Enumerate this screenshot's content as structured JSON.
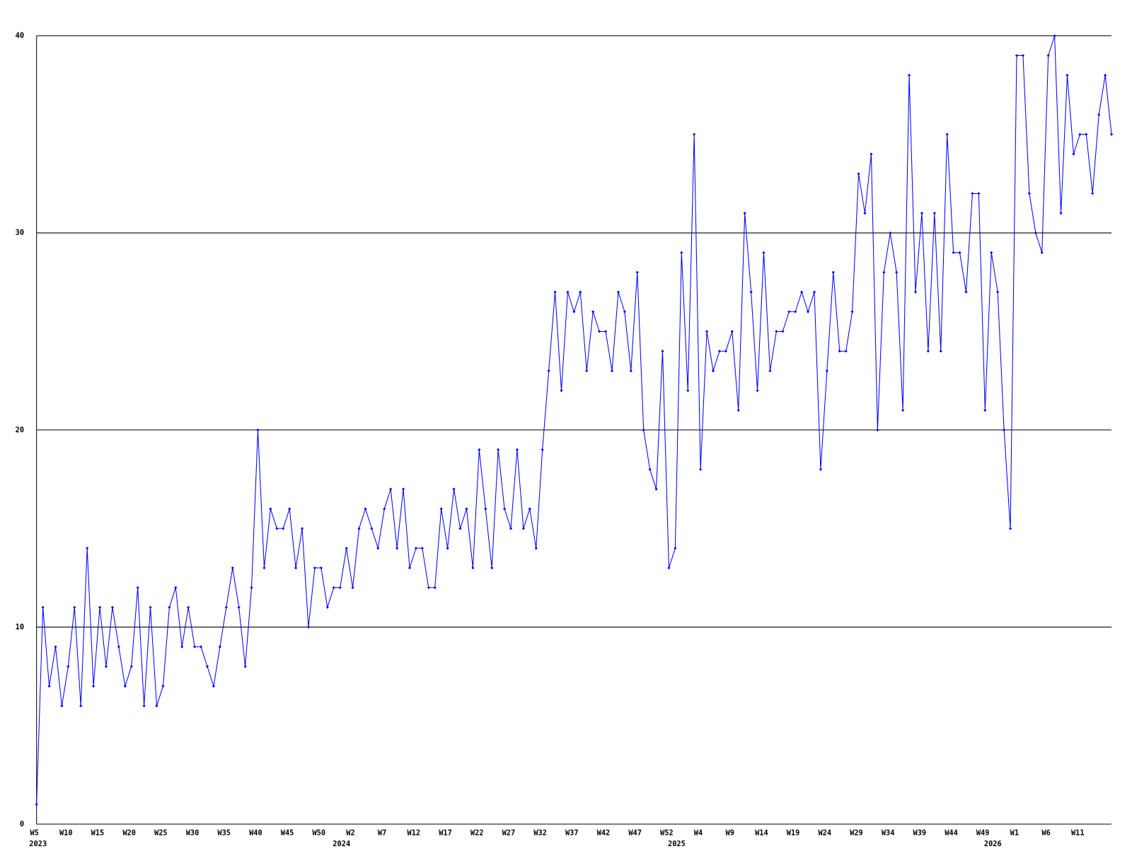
{
  "chart_data": {
    "type": "line",
    "color": "#0000ff",
    "grid": true,
    "ylim": [
      0,
      40
    ],
    "yticks": [
      0,
      10,
      20,
      30,
      40
    ],
    "categories": [
      "W5",
      null,
      null,
      null,
      null,
      "W10",
      null,
      null,
      null,
      null,
      "W15",
      null,
      null,
      null,
      null,
      "W20",
      null,
      null,
      null,
      null,
      "W25",
      null,
      null,
      null,
      null,
      "W30",
      null,
      null,
      null,
      null,
      "W35",
      null,
      null,
      null,
      null,
      "W40",
      null,
      null,
      null,
      null,
      "W45",
      null,
      null,
      null,
      null,
      "W50",
      null,
      null,
      null,
      null,
      "W2",
      null,
      null,
      null,
      null,
      "W7",
      null,
      null,
      null,
      null,
      "W12",
      null,
      null,
      null,
      null,
      "W17",
      null,
      null,
      null,
      null,
      "W22",
      null,
      null,
      null,
      null,
      "W27",
      null,
      null,
      null,
      null,
      "W32",
      null,
      null,
      null,
      null,
      "W37",
      null,
      null,
      null,
      null,
      "W42",
      null,
      null,
      null,
      null,
      "W47",
      null,
      null,
      null,
      null,
      "W52",
      null,
      null,
      null,
      null,
      "W4",
      null,
      null,
      null,
      null,
      "W9",
      null,
      null,
      null,
      null,
      "W14",
      null,
      null,
      null,
      null,
      "W19",
      null,
      null,
      null,
      null,
      "W24",
      null,
      null,
      null,
      null,
      "W29",
      null,
      null,
      null,
      null,
      "W34",
      null,
      null,
      null,
      null,
      "W39",
      null,
      null,
      null,
      null,
      "W44",
      null,
      null,
      null,
      null,
      "W49",
      null,
      null,
      null,
      null,
      "W1",
      null,
      null,
      null,
      null,
      "W6",
      null,
      null,
      null,
      null,
      "W11",
      null,
      null,
      null,
      null,
      null
    ],
    "years": [
      "2023",
      null,
      null,
      null,
      null,
      null,
      null,
      null,
      null,
      null,
      null,
      null,
      null,
      null,
      null,
      null,
      null,
      null,
      null,
      null,
      null,
      null,
      null,
      null,
      null,
      null,
      null,
      null,
      null,
      null,
      null,
      null,
      null,
      null,
      null,
      null,
      null,
      null,
      null,
      null,
      null,
      null,
      null,
      null,
      null,
      null,
      null,
      null,
      "2024",
      null,
      null,
      null,
      null,
      null,
      null,
      null,
      null,
      null,
      null,
      null,
      null,
      null,
      null,
      null,
      null,
      null,
      null,
      null,
      null,
      null,
      null,
      null,
      null,
      null,
      null,
      null,
      null,
      null,
      null,
      null,
      null,
      null,
      null,
      null,
      null,
      null,
      null,
      null,
      null,
      null,
      null,
      null,
      null,
      null,
      null,
      null,
      null,
      null,
      null,
      null,
      null,
      "2025",
      null,
      null,
      null,
      null,
      null,
      null,
      null,
      null,
      null,
      null,
      null,
      null,
      null,
      null,
      null,
      null,
      null,
      null,
      null,
      null,
      null,
      null,
      null,
      null,
      null,
      null,
      null,
      null,
      null,
      null,
      null,
      null,
      null,
      null,
      null,
      null,
      null,
      null,
      null,
      null,
      null,
      null,
      null,
      null,
      null,
      null,
      null,
      null,
      null,
      "2026",
      null,
      null,
      null,
      null,
      null,
      null,
      null,
      null,
      null,
      null,
      null,
      null,
      null,
      null,
      null
    ],
    "values": [
      1,
      11,
      7,
      9,
      6,
      8,
      11,
      6,
      14,
      7,
      11,
      8,
      11,
      9,
      7,
      8,
      12,
      6,
      11,
      6,
      7,
      11,
      12,
      9,
      11,
      9,
      9,
      8,
      7,
      9,
      11,
      13,
      11,
      8,
      12,
      20,
      13,
      16,
      15,
      15,
      16,
      13,
      15,
      10,
      13,
      13,
      11,
      12,
      12,
      14,
      12,
      15,
      16,
      15,
      14,
      16,
      17,
      14,
      17,
      13,
      14,
      14,
      12,
      12,
      16,
      14,
      17,
      15,
      16,
      13,
      19,
      16,
      13,
      19,
      16,
      15,
      19,
      15,
      16,
      14,
      19,
      23,
      27,
      22,
      27,
      26,
      27,
      23,
      26,
      25,
      25,
      23,
      27,
      26,
      23,
      28,
      20,
      18,
      17,
      24,
      13,
      14,
      29,
      22,
      35,
      18,
      25,
      23,
      24,
      24,
      25,
      21,
      31,
      27,
      22,
      29,
      23,
      25,
      25,
      26,
      26,
      27,
      26,
      27,
      18,
      23,
      28,
      24,
      24,
      26,
      33,
      31,
      34,
      20,
      28,
      30,
      28,
      21,
      38,
      27,
      31,
      24,
      31,
      24,
      35,
      29,
      29,
      27,
      32,
      32,
      21,
      29,
      27,
      20,
      15,
      39,
      39,
      32,
      30,
      29,
      39,
      40,
      31,
      38,
      34,
      35,
      35,
      32,
      36,
      38,
      35
    ]
  }
}
